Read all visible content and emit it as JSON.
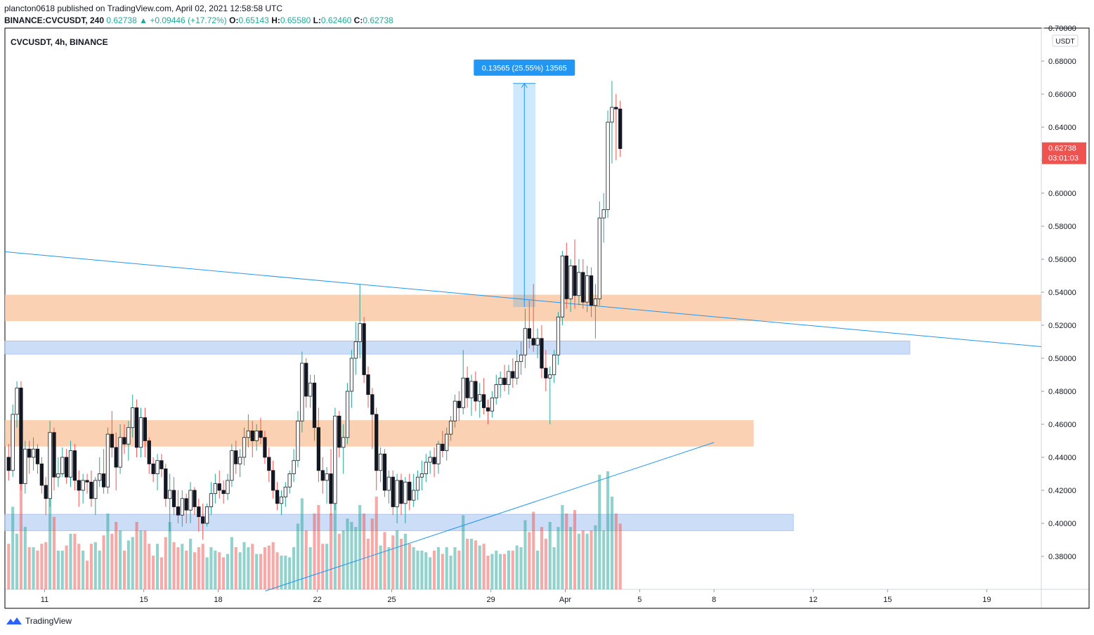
{
  "header": {
    "published_line": "plancton0618 published on TradingView.com, April 02, 2021 12:58:58 UTC",
    "symbol": "BINANCE:CVCUSDT, 240",
    "last": "0.62738",
    "arrow": "▲",
    "change": "+0.09446 (+17.72%)",
    "o_label": "O:",
    "o": "0.65143",
    "h_label": "H:",
    "h": "0.65580",
    "l_label": "L:",
    "l": "0.62460",
    "c_label": "C:",
    "c": "0.62738"
  },
  "legend_title": "CVCUSDT, 4h, BINANCE",
  "currency": "USDT",
  "footer": {
    "brand": "TradingView"
  },
  "colors": {
    "up": "#26a69a",
    "down": "#ef5350",
    "line": "#2196f3",
    "orange_zone": "#f9c7a0",
    "blue_zone": "#b7cff5",
    "measure": "#2196f3"
  },
  "chart_data": {
    "type": "candlestick",
    "title": "CVCUSDT, 4h, BINANCE",
    "ylim": [
      0.36,
      0.7
    ],
    "y_ticks": [
      "0.38000",
      "0.40000",
      "0.42000",
      "0.44000",
      "0.46000",
      "0.48000",
      "0.50000",
      "0.52000",
      "0.54000",
      "0.56000",
      "0.58000",
      "0.60000",
      "0.62000",
      "0.64000",
      "0.66000",
      "0.68000",
      "0.70000"
    ],
    "x_ticks": [
      {
        "label": "11",
        "day": 11
      },
      {
        "label": "15",
        "day": 15
      },
      {
        "label": "18",
        "day": 18
      },
      {
        "label": "22",
        "day": 22
      },
      {
        "label": "25",
        "day": 25
      },
      {
        "label": "29",
        "day": 29
      },
      {
        "label": "Apr",
        "day": 32
      },
      {
        "label": "5",
        "day": 35
      },
      {
        "label": "8",
        "day": 38
      },
      {
        "label": "12",
        "day": 42
      },
      {
        "label": "15",
        "day": 45
      },
      {
        "label": "19",
        "day": 49
      }
    ],
    "x_range_days": [
      9.4,
      51.2
    ],
    "current_price": {
      "value": 0.62738,
      "label": "0.62738",
      "countdown": "03:01:03"
    },
    "measure": {
      "from": 0.531,
      "to": 0.6665,
      "day_start": 29.9,
      "day_end": 30.8,
      "label": "0.13565 (25.55%) 13565"
    },
    "zones": [
      {
        "kind": "orange",
        "low": 0.5225,
        "high": 0.5385,
        "day_end": 51.2
      },
      {
        "kind": "blue",
        "low": 0.5025,
        "high": 0.5105,
        "day_end": 45.9
      },
      {
        "kind": "orange",
        "low": 0.4465,
        "high": 0.4625,
        "day_end": 39.6
      },
      {
        "kind": "blue",
        "low": 0.3955,
        "high": 0.4055,
        "day_end": 41.2
      }
    ],
    "trendlines": [
      {
        "from_day": 9.4,
        "from_price": 0.5645,
        "to_day": 51.2,
        "to_price": 0.507
      },
      {
        "from_day": 19.9,
        "from_price": 0.359,
        "to_day": 38.0,
        "to_price": 0.449
      }
    ],
    "candles": [
      [
        0.44,
        0.448,
        0.426,
        0.432
      ],
      [
        0.432,
        0.472,
        0.428,
        0.466
      ],
      [
        0.466,
        0.486,
        0.458,
        0.482
      ],
      [
        0.482,
        0.486,
        0.42,
        0.424
      ],
      [
        0.424,
        0.45,
        0.418,
        0.445
      ],
      [
        0.445,
        0.45,
        0.43,
        0.44
      ],
      [
        0.44,
        0.452,
        0.432,
        0.445
      ],
      [
        0.445,
        0.448,
        0.43,
        0.436
      ],
      [
        0.436,
        0.44,
        0.418,
        0.423
      ],
      [
        0.423,
        0.428,
        0.405,
        0.415
      ],
      [
        0.415,
        0.462,
        0.41,
        0.455
      ],
      [
        0.455,
        0.458,
        0.42,
        0.428
      ],
      [
        0.428,
        0.44,
        0.422,
        0.43
      ],
      [
        0.43,
        0.446,
        0.428,
        0.44
      ],
      [
        0.44,
        0.445,
        0.424,
        0.428
      ],
      [
        0.428,
        0.45,
        0.422,
        0.444
      ],
      [
        0.444,
        0.448,
        0.42,
        0.426
      ],
      [
        0.426,
        0.432,
        0.41,
        0.42
      ],
      [
        0.42,
        0.43,
        0.412,
        0.426
      ],
      [
        0.426,
        0.43,
        0.418,
        0.425
      ],
      [
        0.425,
        0.432,
        0.41,
        0.415
      ],
      [
        0.415,
        0.428,
        0.405,
        0.426
      ],
      [
        0.426,
        0.44,
        0.422,
        0.43
      ],
      [
        0.43,
        0.445,
        0.418,
        0.422
      ],
      [
        0.422,
        0.458,
        0.418,
        0.454
      ],
      [
        0.454,
        0.468,
        0.44,
        0.446
      ],
      [
        0.446,
        0.455,
        0.42,
        0.434
      ],
      [
        0.434,
        0.46,
        0.43,
        0.452
      ],
      [
        0.452,
        0.46,
        0.442,
        0.448
      ],
      [
        0.448,
        0.462,
        0.438,
        0.458
      ],
      [
        0.458,
        0.478,
        0.452,
        0.47
      ],
      [
        0.47,
        0.475,
        0.44,
        0.446
      ],
      [
        0.446,
        0.47,
        0.44,
        0.464
      ],
      [
        0.464,
        0.47,
        0.44,
        0.45
      ],
      [
        0.45,
        0.452,
        0.43,
        0.436
      ],
      [
        0.436,
        0.44,
        0.425,
        0.43
      ],
      [
        0.43,
        0.442,
        0.42,
        0.438
      ],
      [
        0.438,
        0.442,
        0.428,
        0.433
      ],
      [
        0.433,
        0.436,
        0.41,
        0.415
      ],
      [
        0.415,
        0.43,
        0.395,
        0.42
      ],
      [
        0.42,
        0.428,
        0.405,
        0.41
      ],
      [
        0.41,
        0.42,
        0.4,
        0.405
      ],
      [
        0.405,
        0.42,
        0.398,
        0.415
      ],
      [
        0.415,
        0.418,
        0.4,
        0.408
      ],
      [
        0.408,
        0.425,
        0.4,
        0.42
      ],
      [
        0.42,
        0.422,
        0.405,
        0.41
      ],
      [
        0.41,
        0.415,
        0.395,
        0.404
      ],
      [
        0.404,
        0.412,
        0.39,
        0.4
      ],
      [
        0.4,
        0.412,
        0.398,
        0.41
      ],
      [
        0.41,
        0.425,
        0.405,
        0.418
      ],
      [
        0.418,
        0.43,
        0.412,
        0.424
      ],
      [
        0.424,
        0.432,
        0.415,
        0.42
      ],
      [
        0.42,
        0.426,
        0.412,
        0.418
      ],
      [
        0.418,
        0.43,
        0.414,
        0.426
      ],
      [
        0.426,
        0.448,
        0.422,
        0.444
      ],
      [
        0.444,
        0.45,
        0.43,
        0.436
      ],
      [
        0.436,
        0.445,
        0.428,
        0.44
      ],
      [
        0.44,
        0.458,
        0.435,
        0.452
      ],
      [
        0.452,
        0.466,
        0.446,
        0.456
      ],
      [
        0.456,
        0.462,
        0.44,
        0.45
      ],
      [
        0.45,
        0.46,
        0.444,
        0.456
      ],
      [
        0.456,
        0.464,
        0.448,
        0.452
      ],
      [
        0.452,
        0.456,
        0.436,
        0.44
      ],
      [
        0.44,
        0.446,
        0.425,
        0.432
      ],
      [
        0.432,
        0.438,
        0.415,
        0.42
      ],
      [
        0.42,
        0.425,
        0.408,
        0.412
      ],
      [
        0.412,
        0.42,
        0.405,
        0.416
      ],
      [
        0.416,
        0.425,
        0.41,
        0.422
      ],
      [
        0.422,
        0.432,
        0.418,
        0.43
      ],
      [
        0.43,
        0.445,
        0.425,
        0.438
      ],
      [
        0.438,
        0.468,
        0.434,
        0.462
      ],
      [
        0.462,
        0.504,
        0.455,
        0.497
      ],
      [
        0.497,
        0.5,
        0.47,
        0.477
      ],
      [
        0.477,
        0.49,
        0.47,
        0.485
      ],
      [
        0.485,
        0.49,
        0.45,
        0.458
      ],
      [
        0.458,
        0.47,
        0.425,
        0.432
      ],
      [
        0.432,
        0.44,
        0.418,
        0.426
      ],
      [
        0.426,
        0.434,
        0.412,
        0.43
      ],
      [
        0.43,
        0.445,
        0.405,
        0.412
      ],
      [
        0.412,
        0.47,
        0.408,
        0.465
      ],
      [
        0.465,
        0.468,
        0.44,
        0.446
      ],
      [
        0.446,
        0.46,
        0.43,
        0.452
      ],
      [
        0.452,
        0.485,
        0.448,
        0.48
      ],
      [
        0.48,
        0.505,
        0.47,
        0.5
      ],
      [
        0.5,
        0.522,
        0.49,
        0.51
      ],
      [
        0.51,
        0.545,
        0.5,
        0.521
      ],
      [
        0.521,
        0.525,
        0.485,
        0.49
      ],
      [
        0.49,
        0.495,
        0.47,
        0.478
      ],
      [
        0.478,
        0.482,
        0.445,
        0.466
      ],
      [
        0.466,
        0.47,
        0.42,
        0.432
      ],
      [
        0.432,
        0.446,
        0.425,
        0.442
      ],
      [
        0.442,
        0.445,
        0.416,
        0.42
      ],
      [
        0.42,
        0.432,
        0.412,
        0.428
      ],
      [
        0.428,
        0.432,
        0.405,
        0.41
      ],
      [
        0.41,
        0.43,
        0.4,
        0.426
      ],
      [
        0.426,
        0.43,
        0.405,
        0.412
      ],
      [
        0.412,
        0.428,
        0.4,
        0.425
      ],
      [
        0.425,
        0.43,
        0.408,
        0.414
      ],
      [
        0.414,
        0.43,
        0.41,
        0.42
      ],
      [
        0.42,
        0.432,
        0.414,
        0.428
      ],
      [
        0.428,
        0.438,
        0.42,
        0.43
      ],
      [
        0.43,
        0.442,
        0.425,
        0.437
      ],
      [
        0.437,
        0.444,
        0.43,
        0.44
      ],
      [
        0.44,
        0.446,
        0.428,
        0.436
      ],
      [
        0.436,
        0.45,
        0.43,
        0.448
      ],
      [
        0.448,
        0.456,
        0.44,
        0.444
      ],
      [
        0.444,
        0.458,
        0.438,
        0.454
      ],
      [
        0.454,
        0.465,
        0.45,
        0.462
      ],
      [
        0.462,
        0.478,
        0.458,
        0.474
      ],
      [
        0.474,
        0.48,
        0.462,
        0.47
      ],
      [
        0.47,
        0.505,
        0.466,
        0.488
      ],
      [
        0.488,
        0.495,
        0.47,
        0.476
      ],
      [
        0.476,
        0.49,
        0.465,
        0.486
      ],
      [
        0.486,
        0.492,
        0.468,
        0.474
      ],
      [
        0.474,
        0.485,
        0.464,
        0.478
      ],
      [
        0.478,
        0.488,
        0.466,
        0.47
      ],
      [
        0.47,
        0.475,
        0.46,
        0.468
      ],
      [
        0.468,
        0.48,
        0.464,
        0.476
      ],
      [
        0.476,
        0.49,
        0.472,
        0.484
      ],
      [
        0.484,
        0.492,
        0.476,
        0.488
      ],
      [
        0.488,
        0.496,
        0.48,
        0.484
      ],
      [
        0.484,
        0.496,
        0.478,
        0.492
      ],
      [
        0.492,
        0.5,
        0.482,
        0.488
      ],
      [
        0.488,
        0.505,
        0.484,
        0.498
      ],
      [
        0.498,
        0.51,
        0.49,
        0.502
      ],
      [
        0.502,
        0.53,
        0.494,
        0.518
      ],
      [
        0.518,
        0.535,
        0.506,
        0.512
      ],
      [
        0.512,
        0.545,
        0.504,
        0.508
      ],
      [
        0.508,
        0.518,
        0.5,
        0.512
      ],
      [
        0.512,
        0.52,
        0.488,
        0.494
      ],
      [
        0.494,
        0.505,
        0.48,
        0.488
      ],
      [
        0.488,
        0.495,
        0.46,
        0.49
      ],
      [
        0.49,
        0.505,
        0.485,
        0.502
      ],
      [
        0.502,
        0.528,
        0.496,
        0.525
      ],
      [
        0.525,
        0.565,
        0.52,
        0.562
      ],
      [
        0.562,
        0.57,
        0.53,
        0.536
      ],
      [
        0.536,
        0.56,
        0.528,
        0.556
      ],
      [
        0.556,
        0.572,
        0.53,
        0.538
      ],
      [
        0.538,
        0.56,
        0.532,
        0.552
      ],
      [
        0.552,
        0.56,
        0.53,
        0.534
      ],
      [
        0.534,
        0.556,
        0.528,
        0.55
      ],
      [
        0.55,
        0.555,
        0.525,
        0.532
      ],
      [
        0.532,
        0.545,
        0.512,
        0.536
      ],
      [
        0.536,
        0.595,
        0.532,
        0.585
      ],
      [
        0.585,
        0.6,
        0.57,
        0.59
      ],
      [
        0.59,
        0.65,
        0.585,
        0.643
      ],
      [
        0.643,
        0.668,
        0.618,
        0.652
      ],
      [
        0.652,
        0.66,
        0.62,
        0.651
      ],
      [
        0.651,
        0.656,
        0.622,
        0.627
      ]
    ],
    "volume_colors_note": "volume bars colored by candle direction"
  }
}
